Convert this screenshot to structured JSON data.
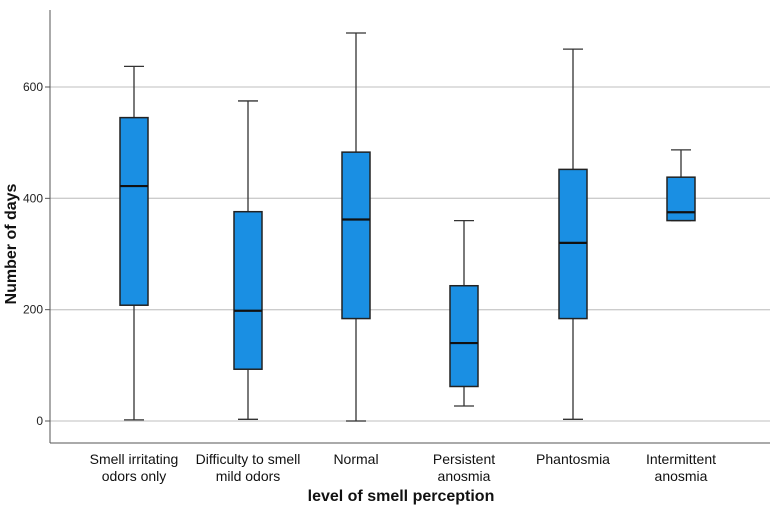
{
  "chart_data": {
    "type": "boxplot",
    "title": "",
    "xlabel": "level of smell perception",
    "ylabel": "Number of days",
    "ylim": [
      -40,
      700
    ],
    "yticks": [
      0,
      200,
      400,
      600
    ],
    "grid": true,
    "colors": {
      "box_fill": "#1a8fe3",
      "box_stroke": "#222222",
      "grid": "#cccccc",
      "axis": "#555555"
    },
    "categories": [
      {
        "label": [
          "Smell irritating",
          "odors only"
        ],
        "min": 2,
        "q1": 208,
        "median": 422,
        "q3": 545,
        "max": 637
      },
      {
        "label": [
          "Difficulty to smell",
          "mild odors"
        ],
        "min": 3,
        "q1": 93,
        "median": 198,
        "q3": 376,
        "max": 575
      },
      {
        "label": [
          "Normal"
        ],
        "min": 0,
        "q1": 184,
        "median": 362,
        "q3": 483,
        "max": 697
      },
      {
        "label": [
          "Persistent",
          "anosmia"
        ],
        "min": 27,
        "q1": 62,
        "median": 140,
        "q3": 243,
        "max": 360
      },
      {
        "label": [
          "Phantosmia"
        ],
        "min": 3,
        "q1": 184,
        "median": 320,
        "q3": 452,
        "max": 668
      },
      {
        "label": [
          "Intermittent",
          "anosmia"
        ],
        "min": 360,
        "q1": 360,
        "median": 375,
        "q3": 438,
        "max": 487
      }
    ]
  }
}
